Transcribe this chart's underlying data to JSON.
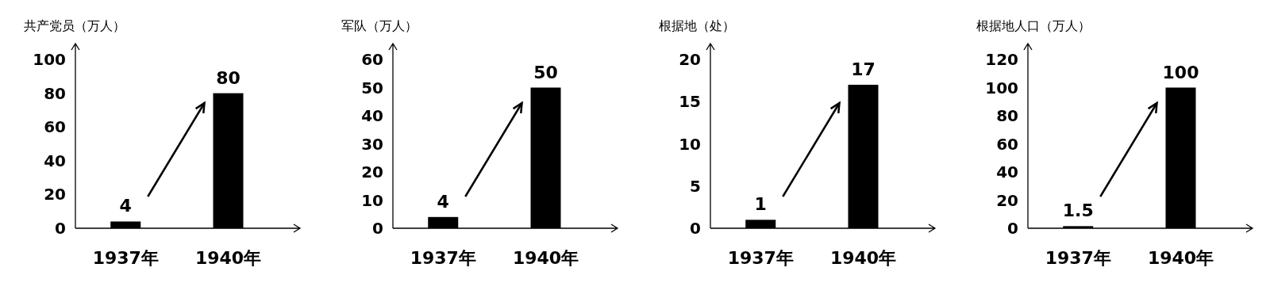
{
  "chart_data": [
    {
      "type": "bar",
      "ylabel": "共产党员（万人）",
      "categories": [
        "1937年",
        "1940年"
      ],
      "values": [
        4,
        80
      ],
      "color": "#000000",
      "ylim": [
        0,
        100
      ],
      "yticks": [
        0,
        20,
        40,
        60,
        80,
        100
      ],
      "data_labels": true
    },
    {
      "type": "bar",
      "ylabel": "军队（万人）",
      "categories": [
        "1937年",
        "1940年"
      ],
      "values": [
        4,
        50
      ],
      "color": "#000000",
      "ylim": [
        0,
        60
      ],
      "yticks": [
        0,
        10,
        20,
        30,
        40,
        50,
        60
      ],
      "data_labels": true
    },
    {
      "type": "bar",
      "ylabel": "根据地（处）",
      "categories": [
        "1937年",
        "1940年"
      ],
      "values": [
        1,
        17
      ],
      "color": "#000000",
      "ylim": [
        0,
        20
      ],
      "yticks": [
        0,
        5,
        10,
        15,
        20
      ],
      "data_labels": true
    },
    {
      "type": "bar",
      "ylabel": "根据地人口（万人）",
      "categories": [
        "1937年",
        "1940年"
      ],
      "values": [
        1.5,
        100
      ],
      "color": "#000000",
      "ylim": [
        0,
        120
      ],
      "yticks": [
        0,
        20,
        40,
        60,
        80,
        100,
        120
      ],
      "data_labels": true
    }
  ]
}
